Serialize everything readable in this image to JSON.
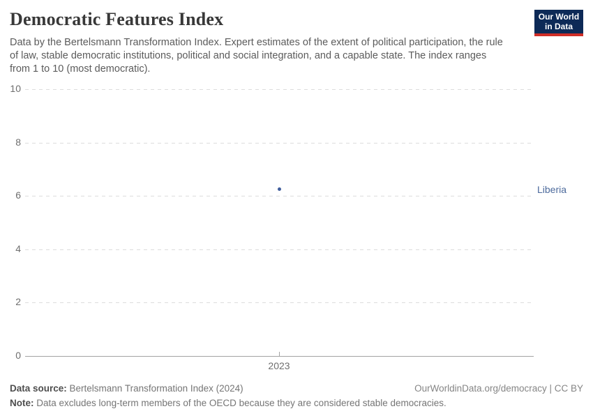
{
  "header": {
    "title": "Democratic Features Index",
    "subtitle_lines": [
      "Data by the Bertelsmann Transformation Index. Expert estimates of the extent of political participation, the rule",
      "of law, stable democratic institutions, political and social integration, and a capable state. The index ranges",
      "from 1 to 10 (most democratic)."
    ],
    "logo": {
      "line1": "Our World",
      "line2": "in Data"
    }
  },
  "chart_data": {
    "type": "scatter",
    "title": "Democratic Features Index",
    "x": [
      2023
    ],
    "xtick_labels": [
      "2023"
    ],
    "series": [
      {
        "name": "Liberia",
        "values": [
          6.25
        ]
      }
    ],
    "ylim": [
      0,
      10
    ],
    "yticks": [
      0,
      2,
      4,
      6,
      8,
      10
    ],
    "grid": "horizontal dashed",
    "legend_position": "right-of-point-label"
  },
  "colors": {
    "point": "#3f5d9c",
    "entity_label": "#4c6a9c",
    "navy": "#0d2a57",
    "red": "#cf2e27"
  },
  "footer": {
    "source_label": "Data source:",
    "source_value": " Bertelsmann Transformation Index (2024)",
    "note_label": "Note:",
    "note_value": " Data excludes long-term members of the OECD because they are considered stable democracies.",
    "rights": "OurWorldinData.org/democracy | CC BY"
  }
}
